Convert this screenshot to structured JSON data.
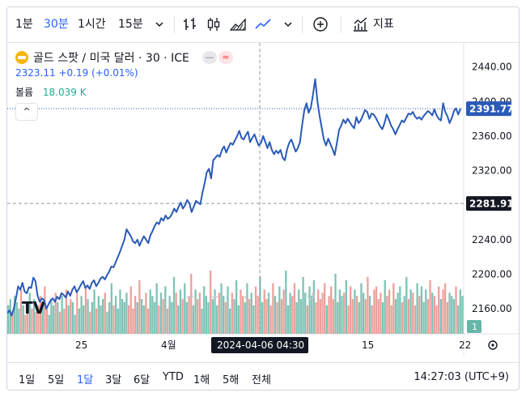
{
  "toolbar": {
    "intervals": [
      "1분",
      "30분",
      "1시간",
      "15분"
    ],
    "active_interval": "30분",
    "indicators_label": "지표",
    "icons": [
      "chevron-down-icon",
      "bar-chart-icon",
      "candlestick-icon",
      "area-chart-icon",
      "line-chart-icon",
      "chevron-down-icon",
      "plus-circle-icon",
      "indicators-icon"
    ]
  },
  "legend": {
    "symbol": "골드 스팟 / 미국 달러 · 30 · ICE",
    "price_line": "2323.11  +0.19 (+0.01%)",
    "volume_label": "볼륨",
    "volume_value": "18.039 K",
    "collapse_glyph": "^",
    "pill_right": "≈"
  },
  "chart_data": {
    "type": "line",
    "y_ticks": [
      2440,
      2400,
      2360,
      2320,
      2280,
      2240,
      2200,
      2160
    ],
    "y_tick_labels": [
      "2440.00",
      "2400.00",
      "2360.00",
      "2320.00",
      "2280.00",
      "2240.00",
      "2200.00",
      "2160.00"
    ],
    "ylim": [
      2131,
      2450
    ],
    "x_tick_labels": [
      "25",
      "4월",
      "15",
      "22"
    ],
    "last_price": 2391.77,
    "last_price_label": "2391.77",
    "crosshair_price": 2281.91,
    "crosshair_price_label": "2281.91",
    "crosshair_time_label": "2024-04-06   04:30",
    "volume_scale_label": "1",
    "series": [
      {
        "values": [
          2155,
          2158,
          2152,
          2160,
          2172,
          2186,
          2182,
          2190,
          2180,
          2178,
          2185,
          2184,
          2196,
          2192,
          2175,
          2168,
          2172,
          2170,
          2160,
          2165,
          2170,
          2172,
          2168,
          2174,
          2171,
          2178,
          2176,
          2173,
          2180,
          2175,
          2182,
          2186,
          2179,
          2183,
          2188,
          2192,
          2184,
          2187,
          2183,
          2190,
          2193,
          2186,
          2190,
          2195,
          2197,
          2194,
          2199,
          2203,
          2209,
          2208,
          2214,
          2220,
          2226,
          2233,
          2240,
          2252,
          2248,
          2244,
          2238,
          2236,
          2240,
          2233,
          2239,
          2244,
          2240,
          2236,
          2245,
          2250,
          2256,
          2260,
          2258,
          2265,
          2262,
          2268,
          2264,
          2266,
          2270,
          2276,
          2272,
          2278,
          2283,
          2276,
          2280,
          2286,
          2282,
          2272,
          2278,
          2285,
          2283,
          2281,
          2294,
          2305,
          2318,
          2322,
          2311,
          2332,
          2335,
          2338,
          2336,
          2344,
          2348,
          2341,
          2347,
          2352,
          2350,
          2355,
          2360,
          2366,
          2358,
          2356,
          2361,
          2365,
          2353,
          2358,
          2362,
          2355,
          2349,
          2352,
          2360,
          2353,
          2346,
          2353,
          2344,
          2339,
          2343,
          2340,
          2344,
          2335,
          2332,
          2344,
          2352,
          2356,
          2349,
          2342,
          2346,
          2353,
          2373,
          2390,
          2398,
          2387,
          2393,
          2408,
          2426,
          2401,
          2384,
          2370,
          2356,
          2349,
          2357,
          2351,
          2345,
          2338,
          2352,
          2367,
          2372,
          2379,
          2375,
          2380,
          2376,
          2372,
          2369,
          2382,
          2375,
          2378,
          2384,
          2390,
          2388,
          2380,
          2386,
          2385,
          2381,
          2376,
          2371,
          2368,
          2375,
          2385,
          2379,
          2372,
          2368,
          2362,
          2368,
          2373,
          2378,
          2376,
          2381,
          2386,
          2385,
          2388,
          2383,
          2380,
          2382,
          2379,
          2383,
          2386,
          2389,
          2387,
          2384,
          2391,
          2384,
          2380,
          2378,
          2398,
          2388,
          2383,
          2375,
          2381,
          2389,
          2392,
          2385,
          2391.77
        ]
      }
    ],
    "volume": [
      9,
      11,
      7,
      12,
      10,
      8,
      14,
      9,
      6,
      10,
      13,
      8,
      11,
      7,
      9,
      12,
      10,
      15,
      8,
      6,
      11,
      9,
      13,
      10,
      7,
      12,
      8,
      14,
      9,
      11,
      10,
      6,
      13,
      8,
      12,
      9,
      15,
      11,
      7,
      10,
      14,
      8,
      12,
      9,
      11,
      13,
      7,
      10,
      16,
      9,
      12,
      8,
      14,
      11,
      10,
      13,
      9,
      15,
      8,
      12,
      10,
      17,
      11,
      9,
      13,
      8,
      14,
      12,
      10,
      16,
      9,
      13,
      11,
      15,
      8,
      12,
      10,
      18,
      13,
      9,
      14,
      11,
      16,
      10,
      12,
      19,
      9,
      14,
      11,
      13,
      8,
      15,
      12,
      10,
      20,
      11,
      14,
      9,
      13,
      16,
      12,
      10,
      15,
      8,
      13,
      11,
      17,
      9,
      14,
      12,
      10,
      16,
      11,
      13,
      9,
      15,
      12,
      18,
      10,
      14,
      11,
      13,
      9,
      16,
      12,
      10,
      15,
      11,
      14,
      20,
      9,
      13,
      12,
      16,
      10,
      14,
      11,
      18,
      13,
      9,
      15,
      12,
      17,
      10,
      14,
      11,
      13,
      16,
      9,
      12,
      15,
      11,
      19,
      10,
      14,
      12,
      13,
      17,
      9,
      15,
      11,
      14,
      12,
      10,
      16,
      13,
      11,
      18,
      12,
      9,
      14,
      15,
      11,
      13,
      10,
      17,
      12,
      14,
      9,
      16,
      11,
      13,
      15,
      10,
      12,
      18,
      11,
      14,
      13,
      9,
      16,
      12,
      15,
      10,
      14,
      11,
      17,
      13,
      12,
      9,
      15,
      11,
      14,
      16,
      10,
      13,
      12,
      11,
      15,
      9,
      14,
      12
    ]
  },
  "watermark_buttons": [
    "−",
    "+",
    "‹",
    "›",
    "↺"
  ],
  "bottom": {
    "ranges": [
      "1일",
      "5일",
      "1달",
      "3달",
      "6달",
      "YTD",
      "1해",
      "5해",
      "전체"
    ],
    "active_range": "1달",
    "clock": "14:27:03 (UTC+9)"
  },
  "colors": {
    "line": "#2a5ab8",
    "up_volume": "#66b7a7",
    "down_volume": "#e88f8a",
    "accent": "#2962ff",
    "last_price_bg": "#2a5ab8",
    "crosshair_bg": "#131722"
  }
}
